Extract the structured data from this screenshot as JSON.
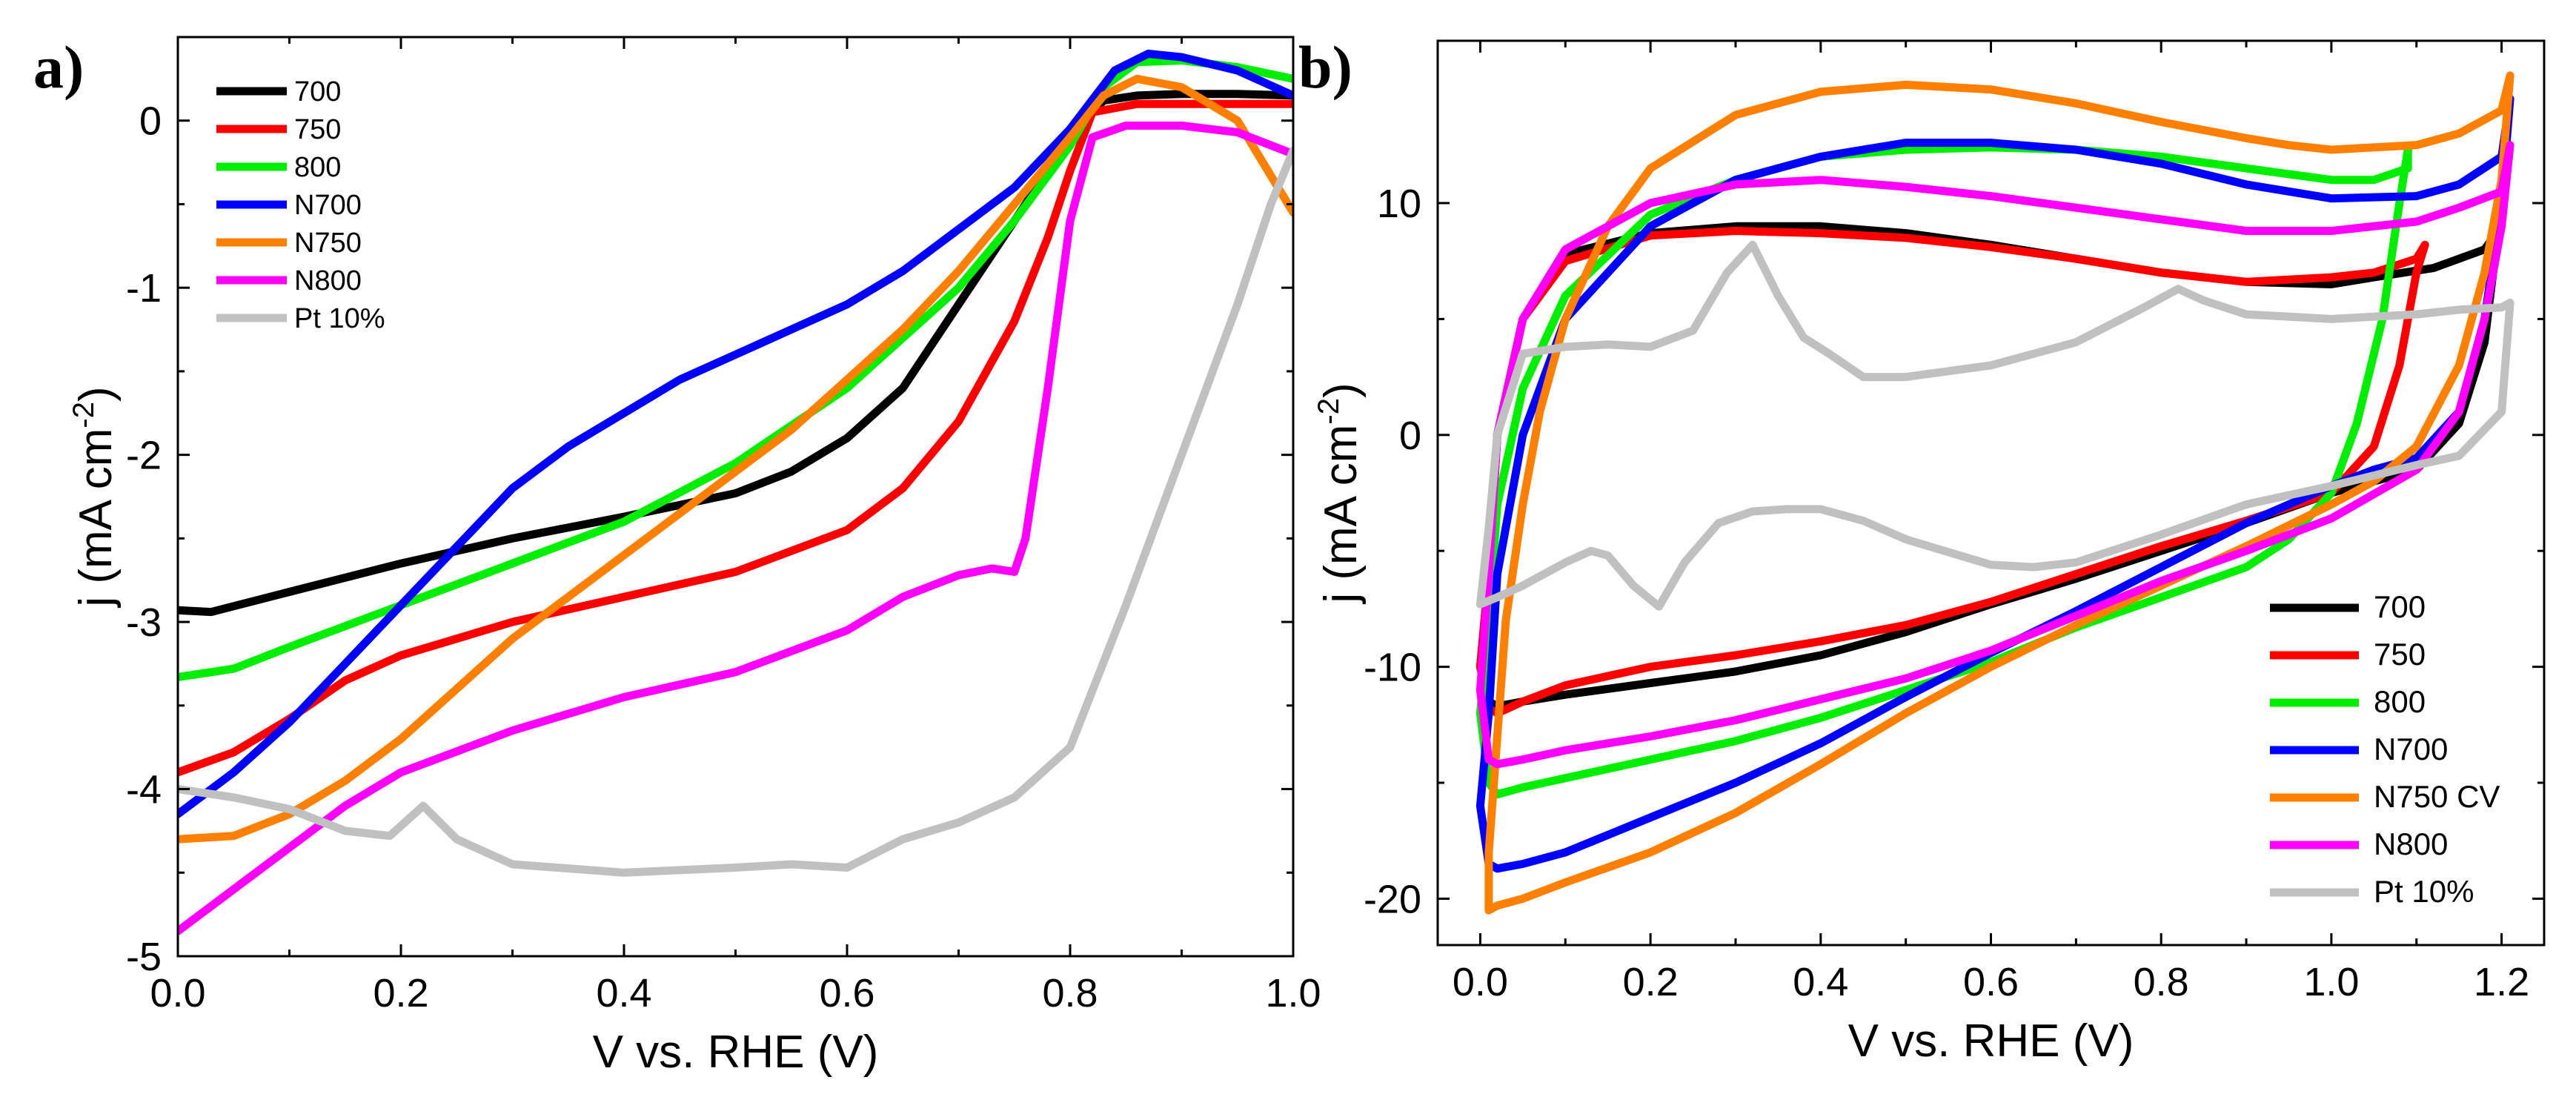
{
  "chart_data": [
    {
      "panel": "a)",
      "type": "line",
      "xlabel": "V vs. RHE (V)",
      "ylabel": "j (mA cm",
      "ylabel_sup": "-2",
      "ylabel_end": ")",
      "xlim": [
        0.0,
        1.0
      ],
      "ylim": [
        -5,
        0.5
      ],
      "xticks": [
        0.0,
        0.2,
        0.4,
        0.6,
        0.8,
        1.0
      ],
      "xtick_labels": [
        "0.0",
        "0.2",
        "0.4",
        "0.6",
        "0.8",
        "1.0"
      ],
      "yticks": [
        0,
        -1,
        -2,
        -3,
        -4,
        -5
      ],
      "ytick_labels": [
        "0",
        "-1",
        "-2",
        "-3",
        "-4",
        "-5"
      ],
      "legend_position": "top-left",
      "series": [
        {
          "name": "700",
          "color": "#000000",
          "x": [
            0.0,
            0.03,
            0.1,
            0.2,
            0.3,
            0.4,
            0.5,
            0.55,
            0.6,
            0.65,
            0.7,
            0.75,
            0.8,
            0.83,
            0.86,
            0.9,
            0.95,
            1.0
          ],
          "y": [
            -2.93,
            -2.94,
            -2.82,
            -2.65,
            -2.5,
            -2.37,
            -2.23,
            -2.1,
            -1.9,
            -1.6,
            -1.1,
            -0.6,
            -0.1,
            0.12,
            0.15,
            0.16,
            0.16,
            0.15
          ]
        },
        {
          "name": "750",
          "color": "#ff0000",
          "x": [
            0.0,
            0.05,
            0.1,
            0.15,
            0.2,
            0.3,
            0.4,
            0.5,
            0.6,
            0.65,
            0.7,
            0.75,
            0.78,
            0.8,
            0.82,
            0.86,
            0.9,
            1.0
          ],
          "y": [
            -3.9,
            -3.78,
            -3.58,
            -3.35,
            -3.2,
            -3.0,
            -2.85,
            -2.7,
            -2.45,
            -2.2,
            -1.8,
            -1.2,
            -0.7,
            -0.3,
            0.05,
            0.1,
            0.1,
            0.1
          ]
        },
        {
          "name": "800",
          "color": "#00ee00",
          "x": [
            0.0,
            0.05,
            0.1,
            0.2,
            0.3,
            0.4,
            0.5,
            0.6,
            0.7,
            0.75,
            0.8,
            0.83,
            0.86,
            0.9,
            0.95,
            1.0
          ],
          "y": [
            -3.33,
            -3.28,
            -3.15,
            -2.9,
            -2.65,
            -2.4,
            -2.05,
            -1.6,
            -1.0,
            -0.6,
            -0.15,
            0.2,
            0.35,
            0.36,
            0.32,
            0.25
          ]
        },
        {
          "name": "N700",
          "color": "#0000ff",
          "x": [
            0.0,
            0.05,
            0.1,
            0.15,
            0.2,
            0.25,
            0.3,
            0.35,
            0.4,
            0.45,
            0.5,
            0.55,
            0.6,
            0.65,
            0.7,
            0.75,
            0.8,
            0.84,
            0.87,
            0.9,
            0.95,
            1.0
          ],
          "y": [
            -4.15,
            -3.9,
            -3.6,
            -3.25,
            -2.9,
            -2.55,
            -2.2,
            -1.95,
            -1.75,
            -1.55,
            -1.4,
            -1.25,
            -1.1,
            -0.9,
            -0.65,
            -0.4,
            -0.05,
            0.3,
            0.4,
            0.38,
            0.3,
            0.15
          ]
        },
        {
          "name": "N750",
          "color": "#ff8000",
          "x": [
            0.0,
            0.05,
            0.1,
            0.15,
            0.2,
            0.25,
            0.3,
            0.35,
            0.4,
            0.45,
            0.5,
            0.55,
            0.6,
            0.65,
            0.7,
            0.75,
            0.8,
            0.83,
            0.86,
            0.9,
            0.95,
            1.0
          ],
          "y": [
            -4.3,
            -4.28,
            -4.15,
            -3.95,
            -3.7,
            -3.4,
            -3.1,
            -2.85,
            -2.6,
            -2.35,
            -2.1,
            -1.85,
            -1.55,
            -1.25,
            -0.9,
            -0.5,
            -0.1,
            0.15,
            0.25,
            0.2,
            0.0,
            -0.55
          ]
        },
        {
          "name": "N800",
          "color": "#ff00ff",
          "x": [
            0.0,
            0.05,
            0.1,
            0.15,
            0.2,
            0.3,
            0.4,
            0.5,
            0.6,
            0.65,
            0.7,
            0.73,
            0.75,
            0.76,
            0.78,
            0.8,
            0.82,
            0.85,
            0.9,
            0.95,
            1.0
          ],
          "y": [
            -4.85,
            -4.6,
            -4.35,
            -4.1,
            -3.9,
            -3.65,
            -3.45,
            -3.3,
            -3.05,
            -2.85,
            -2.72,
            -2.68,
            -2.7,
            -2.5,
            -1.6,
            -0.6,
            -0.1,
            -0.03,
            -0.03,
            -0.07,
            -0.2
          ]
        },
        {
          "name": "Pt 10%",
          "color": "#c0c0c0",
          "x": [
            0.0,
            0.05,
            0.1,
            0.15,
            0.19,
            0.22,
            0.25,
            0.3,
            0.4,
            0.5,
            0.55,
            0.6,
            0.65,
            0.7,
            0.75,
            0.8,
            0.85,
            0.9,
            0.95,
            0.98,
            1.0
          ],
          "y": [
            -4.0,
            -4.05,
            -4.12,
            -4.25,
            -4.28,
            -4.1,
            -4.3,
            -4.45,
            -4.5,
            -4.47,
            -4.45,
            -4.47,
            -4.3,
            -4.2,
            -4.05,
            -3.75,
            -2.9,
            -2.0,
            -1.1,
            -0.5,
            -0.18
          ]
        }
      ]
    },
    {
      "panel": "b)",
      "type": "line",
      "xlabel": "V vs. RHE (V)",
      "ylabel": "j (mA cm",
      "ylabel_sup": "-2",
      "ylabel_end": ")",
      "xlim": [
        -0.05,
        1.25
      ],
      "ylim": [
        -22,
        17
      ],
      "xticks": [
        0.0,
        0.2,
        0.4,
        0.6,
        0.8,
        1.0,
        1.2
      ],
      "xtick_labels": [
        "0.0",
        "0.2",
        "0.4",
        "0.6",
        "0.8",
        "1.0",
        "1.2"
      ],
      "yticks": [
        10,
        0,
        -10,
        -20
      ],
      "ytick_labels": [
        "10",
        "0",
        "-10",
        "-20"
      ],
      "legend_position": "bottom-right",
      "series": [
        {
          "name": "700",
          "color": "#000000",
          "x": [
            0.02,
            0.05,
            0.1,
            0.2,
            0.3,
            0.4,
            0.5,
            0.6,
            0.7,
            0.8,
            0.9,
            1.0,
            1.1,
            1.15,
            1.18,
            1.2,
            1.2,
            1.18,
            1.12,
            1.05,
            1.0,
            0.9,
            0.8,
            0.7,
            0.6,
            0.5,
            0.4,
            0.3,
            0.2,
            0.1,
            0.05,
            0.02,
            0.01,
            0.0,
            0.01,
            0.02
          ],
          "y": [
            -11.7,
            -11.5,
            -11.2,
            -10.7,
            -10.2,
            -9.5,
            -8.5,
            -7.3,
            -6.2,
            -5.0,
            -3.8,
            -2.5,
            -1.5,
            0.5,
            4.0,
            10.0,
            9.0,
            8.0,
            7.2,
            6.8,
            6.5,
            6.6,
            7.0,
            7.6,
            8.2,
            8.7,
            9.0,
            9.0,
            8.7,
            7.8,
            5.0,
            0.0,
            -6.0,
            -10.0,
            -11.5,
            -11.7
          ]
        },
        {
          "name": "750",
          "color": "#ff0000",
          "x": [
            0.02,
            0.05,
            0.1,
            0.2,
            0.3,
            0.4,
            0.5,
            0.6,
            0.7,
            0.8,
            0.9,
            1.0,
            1.05,
            1.08,
            1.1,
            1.11,
            1.1,
            1.05,
            1.0,
            0.9,
            0.8,
            0.7,
            0.6,
            0.5,
            0.4,
            0.3,
            0.2,
            0.1,
            0.05,
            0.02,
            0.01,
            0.0,
            0.01,
            0.02
          ],
          "y": [
            -12.0,
            -11.5,
            -10.8,
            -10.0,
            -9.5,
            -8.9,
            -8.2,
            -7.2,
            -6.0,
            -4.8,
            -3.7,
            -2.5,
            -0.5,
            3.0,
            7.0,
            8.2,
            7.6,
            7.0,
            6.8,
            6.6,
            7.0,
            7.6,
            8.1,
            8.5,
            8.7,
            8.8,
            8.6,
            7.5,
            5.0,
            0.0,
            -6.0,
            -10.0,
            -11.8,
            -12.0
          ]
        },
        {
          "name": "800",
          "color": "#00ee00",
          "x": [
            0.02,
            0.05,
            0.1,
            0.2,
            0.3,
            0.4,
            0.5,
            0.6,
            0.7,
            0.8,
            0.9,
            0.95,
            1.0,
            1.03,
            1.06,
            1.08,
            1.09,
            1.09,
            1.05,
            1.0,
            0.9,
            0.8,
            0.7,
            0.6,
            0.5,
            0.4,
            0.3,
            0.2,
            0.1,
            0.05,
            0.02,
            0.01,
            0.0,
            0.01,
            0.02
          ],
          "y": [
            -15.5,
            -15.2,
            -14.8,
            -14.0,
            -13.2,
            -12.2,
            -11.0,
            -9.8,
            -8.3,
            -7.0,
            -5.7,
            -4.5,
            -2.5,
            0.5,
            5.0,
            10.0,
            12.3,
            11.5,
            11.0,
            11.0,
            11.5,
            12.0,
            12.3,
            12.4,
            12.3,
            12.0,
            11.0,
            9.5,
            6.0,
            2.0,
            -3.0,
            -8.0,
            -12.0,
            -15.0,
            -15.5
          ]
        },
        {
          "name": "N700",
          "color": "#0000ff",
          "x": [
            0.02,
            0.05,
            0.1,
            0.2,
            0.3,
            0.4,
            0.5,
            0.6,
            0.7,
            0.8,
            0.9,
            1.0,
            1.05,
            1.1,
            1.15,
            1.18,
            1.2,
            1.21,
            1.2,
            1.15,
            1.1,
            1.0,
            0.9,
            0.8,
            0.7,
            0.6,
            0.5,
            0.4,
            0.3,
            0.2,
            0.1,
            0.05,
            0.02,
            0.01,
            0.0,
            0.01,
            0.02
          ],
          "y": [
            -18.7,
            -18.5,
            -18.0,
            -16.5,
            -15.0,
            -13.3,
            -11.3,
            -9.4,
            -7.6,
            -5.7,
            -3.8,
            -2.2,
            -1.5,
            -1.0,
            1.0,
            5.0,
            10.0,
            14.5,
            12.0,
            10.8,
            10.3,
            10.2,
            10.8,
            11.7,
            12.3,
            12.6,
            12.6,
            12.0,
            11.0,
            9.0,
            5.0,
            0.0,
            -6.0,
            -12.0,
            -16.0,
            -18.5,
            -18.7
          ]
        },
        {
          "name": "N750 CV",
          "color": "#ff8000",
          "x": [
            0.02,
            0.05,
            0.1,
            0.2,
            0.3,
            0.4,
            0.5,
            0.6,
            0.7,
            0.8,
            0.9,
            1.0,
            1.05,
            1.1,
            1.15,
            1.18,
            1.2,
            1.21,
            1.2,
            1.15,
            1.1,
            1.0,
            0.95,
            0.9,
            0.8,
            0.7,
            0.6,
            0.5,
            0.4,
            0.3,
            0.2,
            0.15,
            0.1,
            0.07,
            0.05,
            0.03,
            0.02,
            0.01,
            0.01,
            0.02
          ],
          "y": [
            -20.3,
            -20.0,
            -19.3,
            -18.0,
            -16.3,
            -14.2,
            -12.0,
            -10.0,
            -8.2,
            -6.5,
            -4.8,
            -3.0,
            -2.0,
            -0.5,
            3.0,
            7.0,
            11.0,
            15.5,
            14.0,
            13.0,
            12.5,
            12.3,
            12.5,
            12.8,
            13.5,
            14.3,
            14.9,
            15.1,
            14.8,
            13.8,
            11.5,
            9.0,
            5.0,
            1.0,
            -3.0,
            -8.0,
            -13.0,
            -18.0,
            -20.5,
            -20.3
          ]
        },
        {
          "name": "N800",
          "color": "#ff00ff",
          "x": [
            0.02,
            0.05,
            0.1,
            0.2,
            0.3,
            0.4,
            0.5,
            0.6,
            0.7,
            0.8,
            0.9,
            1.0,
            1.1,
            1.15,
            1.18,
            1.2,
            1.21,
            1.2,
            1.15,
            1.1,
            1.0,
            0.9,
            0.8,
            0.7,
            0.6,
            0.5,
            0.4,
            0.3,
            0.2,
            0.1,
            0.05,
            0.02,
            0.01,
            0.0,
            0.01,
            0.02
          ],
          "y": [
            -14.2,
            -14.0,
            -13.6,
            -13.0,
            -12.3,
            -11.4,
            -10.5,
            -9.3,
            -7.8,
            -6.3,
            -5.0,
            -3.6,
            -1.5,
            1.0,
            5.0,
            9.0,
            12.5,
            10.5,
            9.8,
            9.2,
            8.8,
            8.8,
            9.3,
            9.8,
            10.3,
            10.7,
            11.0,
            10.8,
            10.0,
            8.0,
            5.0,
            0.0,
            -6.0,
            -11.0,
            -14.0,
            -14.2
          ]
        },
        {
          "name": "Pt 10%",
          "color": "#c0c0c0",
          "x": [
            0.0,
            0.02,
            0.05,
            0.1,
            0.13,
            0.15,
            0.18,
            0.21,
            0.24,
            0.28,
            0.32,
            0.36,
            0.4,
            0.45,
            0.5,
            0.6,
            0.65,
            0.7,
            0.8,
            0.9,
            1.0,
            1.1,
            1.15,
            1.2,
            1.21,
            1.2,
            1.15,
            1.1,
            1.0,
            0.9,
            0.85,
            0.82,
            0.78,
            0.7,
            0.6,
            0.5,
            0.45,
            0.41,
            0.38,
            0.35,
            0.32,
            0.29,
            0.25,
            0.2,
            0.15,
            0.1,
            0.05,
            0.02,
            0.01,
            0.0
          ],
          "y": [
            -7.3,
            -7.0,
            -6.5,
            -5.5,
            -5.0,
            -5.2,
            -6.5,
            -7.4,
            -5.5,
            -3.8,
            -3.3,
            -3.2,
            -3.2,
            -3.7,
            -4.5,
            -5.6,
            -5.7,
            -5.5,
            -4.3,
            -3.0,
            -2.2,
            -1.3,
            -0.9,
            1.0,
            5.7,
            5.5,
            5.4,
            5.2,
            5.0,
            5.2,
            5.8,
            6.3,
            5.5,
            4.0,
            3.0,
            2.5,
            2.5,
            3.5,
            4.2,
            6.0,
            8.2,
            7.0,
            4.5,
            3.8,
            3.9,
            3.8,
            3.5,
            0.0,
            -4.0,
            -7.3
          ]
        }
      ]
    }
  ]
}
